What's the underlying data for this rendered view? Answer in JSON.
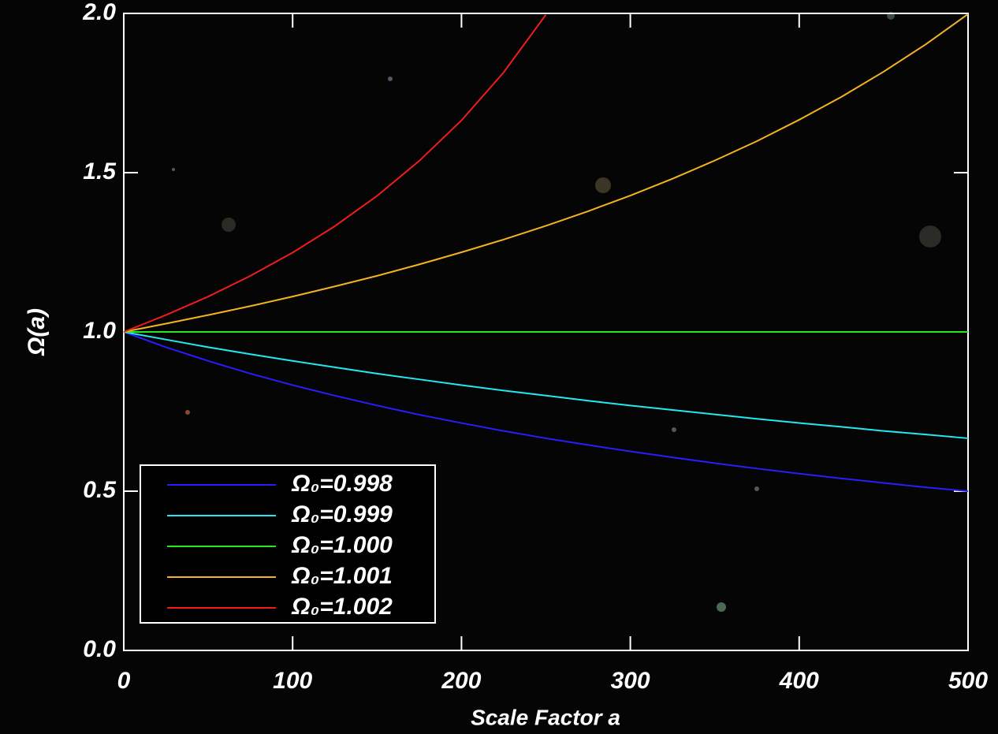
{
  "chart_data": {
    "type": "line",
    "x_label": "Scale Factor a",
    "y_label": "Ω(a)",
    "x": [
      0,
      25,
      50,
      75,
      100,
      125,
      150,
      175,
      200,
      225,
      250,
      275,
      300,
      325,
      350,
      375,
      400,
      425,
      450,
      475,
      500
    ],
    "series": [
      {
        "name": "Ω₀=0.998",
        "color": "#2a1cff",
        "values": [
          1,
          0.952,
          0.909,
          0.869,
          0.833,
          0.8,
          0.769,
          0.74,
          0.714,
          0.689,
          0.666,
          0.645,
          0.625,
          0.606,
          0.588,
          0.571,
          0.555,
          0.54,
          0.526,
          0.512,
          0.5
        ]
      },
      {
        "name": "Ω₀=0.999",
        "color": "#22e8f0",
        "values": [
          1,
          0.976,
          0.952,
          0.93,
          0.909,
          0.889,
          0.869,
          0.851,
          0.833,
          0.816,
          0.8,
          0.784,
          0.769,
          0.755,
          0.741,
          0.727,
          0.714,
          0.702,
          0.689,
          0.678,
          0.666
        ]
      },
      {
        "name": "Ω₀=1.000",
        "color": "#22e822",
        "values": [
          1,
          1,
          1,
          1,
          1,
          1,
          1,
          1,
          1,
          1,
          1,
          1,
          1,
          1,
          1,
          1,
          1,
          1,
          1,
          1,
          1
        ]
      },
      {
        "name": "Ω₀=1.001",
        "color": "#f5b322",
        "values": [
          1,
          1.026,
          1.053,
          1.081,
          1.111,
          1.143,
          1.176,
          1.212,
          1.25,
          1.29,
          1.333,
          1.379,
          1.428,
          1.481,
          1.538,
          1.599,
          1.666,
          1.738,
          1.817,
          1.903,
          1.998
        ]
      },
      {
        "name": "Ω₀=1.002",
        "color": "#f01c1c",
        "values": [
          1,
          1.053,
          1.111,
          1.176,
          1.249,
          1.332,
          1.427,
          1.537,
          1.664,
          1.815,
          1.996,
          null,
          null,
          null,
          null,
          null,
          null,
          null,
          null,
          null,
          null
        ]
      }
    ],
    "xlim": [
      0,
      500
    ],
    "xticks": [
      0,
      100,
      200,
      300,
      400,
      500
    ],
    "ylim": [
      0,
      2
    ],
    "yticks": [
      {
        "value": 0,
        "label": "0.0"
      },
      0.5,
      {
        "value": 1,
        "label": "1.0"
      },
      1.5,
      {
        "value": 2,
        "label": "2.0"
      }
    ],
    "legend": "lower left"
  }
}
